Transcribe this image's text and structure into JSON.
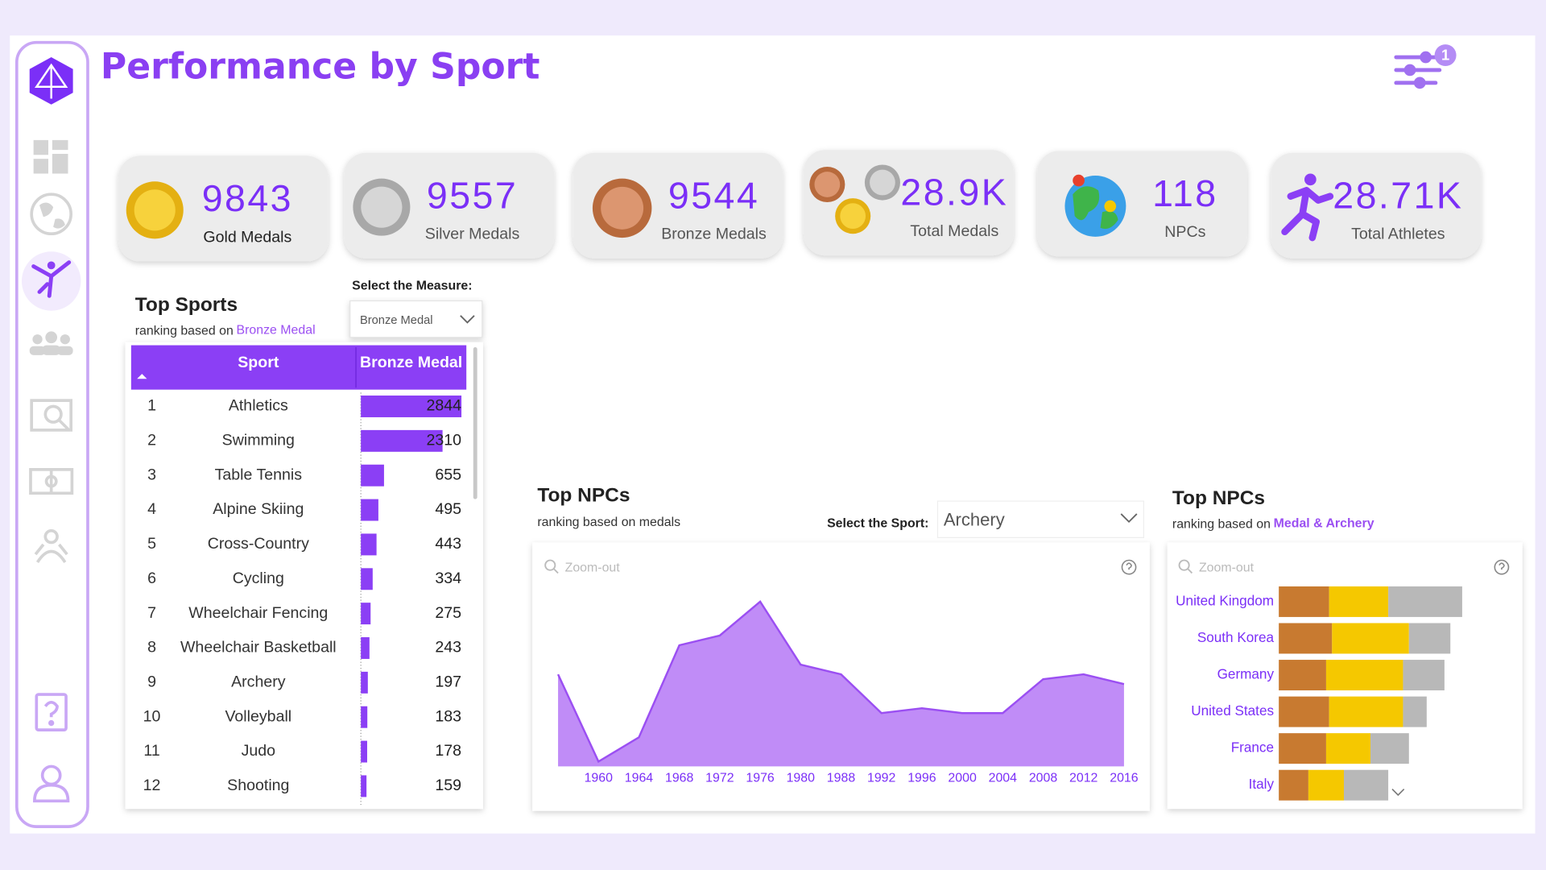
{
  "header": {
    "title": "Performance by Sport",
    "filter_badge": "1"
  },
  "kpis": [
    {
      "value": "9843",
      "label": "Gold Medals"
    },
    {
      "value": "9557",
      "label": "Silver Medals"
    },
    {
      "value": "9544",
      "label": "Bronze Medals"
    },
    {
      "value": "28.9K",
      "label": "Total Medals"
    },
    {
      "value": "118",
      "label": "NPCs"
    },
    {
      "value": "28.71K",
      "label": "Total Athletes"
    }
  ],
  "top_sports": {
    "title": "Top Sports",
    "subtitle": "ranking based on",
    "measure": "Bronze Medal",
    "selector_label": "Select the Measure:",
    "selector_value": "Bronze Medal",
    "columns": [
      "Sport",
      "Bronze Medal"
    ],
    "color": "#8b3ff5",
    "rows": [
      {
        "rank": 1,
        "sport": "Athletics",
        "value": 2844
      },
      {
        "rank": 2,
        "sport": "Swimming",
        "value": 2310
      },
      {
        "rank": 3,
        "sport": "Table Tennis",
        "value": 655
      },
      {
        "rank": 4,
        "sport": "Alpine Skiing",
        "value": 495
      },
      {
        "rank": 5,
        "sport": "Cross-Country",
        "value": 443
      },
      {
        "rank": 6,
        "sport": "Cycling",
        "value": 334
      },
      {
        "rank": 7,
        "sport": "Wheelchair Fencing",
        "value": 275
      },
      {
        "rank": 8,
        "sport": "Wheelchair Basketball",
        "value": 243
      },
      {
        "rank": 9,
        "sport": "Archery",
        "value": 197
      },
      {
        "rank": 10,
        "sport": "Volleyball",
        "value": 183
      },
      {
        "rank": 11,
        "sport": "Judo",
        "value": 178
      },
      {
        "rank": 12,
        "sport": "Shooting",
        "value": 159
      }
    ]
  },
  "npc_trend": {
    "type": "area",
    "title": "Top NPCs",
    "subtitle": "ranking based on medals",
    "selector_label": "Select the Sport:",
    "selector_value": "Archery",
    "zoom": "Zoom-out",
    "color": "#c08cf7",
    "line_color": "#9b4ff2",
    "categories": [
      null,
      "1960",
      "1964",
      "1968",
      "1972",
      "1976",
      "1980",
      "1988",
      "1992",
      "1996",
      "2000",
      "2004",
      "2008",
      "2012",
      "2016"
    ],
    "values": [
      19,
      1,
      6,
      25,
      27,
      34,
      21,
      19,
      11,
      12,
      11,
      11,
      18,
      19,
      17
    ],
    "ylim": [
      0,
      35
    ]
  },
  "npc_bars": {
    "type": "stacked_barh",
    "title": "Top NPCs",
    "subtitle": "ranking based on",
    "measure": "Medal & Archery",
    "zoom": "Zoom-out",
    "categories": [
      "United Kingdom",
      "South Korea",
      "Germany",
      "United States",
      "France",
      "Italy"
    ],
    "series": [
      {
        "color": "#c87a30",
        "values": [
          17,
          18,
          16,
          17,
          16,
          10
        ]
      },
      {
        "color": "#f5c800",
        "values": [
          20,
          26,
          26,
          25,
          15,
          12
        ]
      },
      {
        "color": "#b8b8b8",
        "values": [
          25,
          14,
          14,
          8,
          13,
          15
        ]
      }
    ],
    "xlim": [
      0,
      70
    ]
  }
}
